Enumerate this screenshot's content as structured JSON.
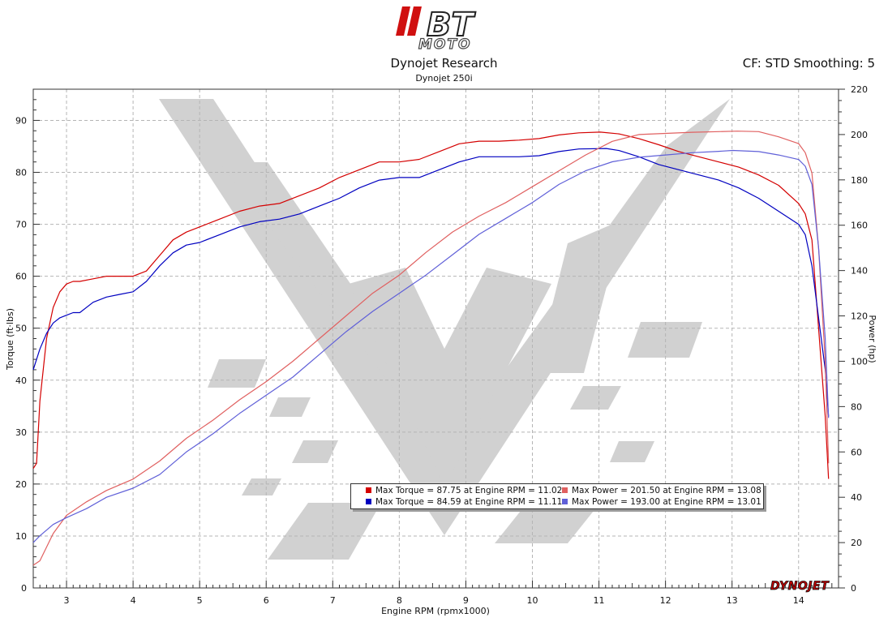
{
  "header": {
    "logo_text": "BT MOTO",
    "title": "Dynojet Research",
    "subtitle": "Dynojet 250i",
    "correction": "CF: STD Smoothing: 5"
  },
  "brand": {
    "red": "#d40000",
    "blue": "#0000c0",
    "light_red": "#e06060",
    "light_blue": "#6060d8",
    "watermark": "#c8c8c8",
    "dynojet_logo_text": "DYNOJET"
  },
  "legend": {
    "items": [
      {
        "color": "#d40000",
        "label": "Max Torque = 87.75 at Engine RPM = 11.02"
      },
      {
        "color": "#e06060",
        "label": "Max Power = 201.50 at Engine RPM = 13.08"
      },
      {
        "color": "#0000c0",
        "label": "Max Torque = 84.59 at Engine RPM = 11.11"
      },
      {
        "color": "#6060d8",
        "label": "Max Power = 193.00 at Engine RPM = 13.01"
      }
    ]
  },
  "chart_data": {
    "type": "line",
    "xlabel": "Engine RPM (rpmx1000)",
    "ylabel": "Torque (ft·lbs)",
    "y2label": "Power (hp)",
    "xlim": [
      2.5,
      14.6
    ],
    "ylim": [
      0,
      96
    ],
    "y2lim": [
      0,
      220
    ],
    "x_ticks": [
      3,
      4,
      5,
      6,
      7,
      8,
      9,
      10,
      11,
      12,
      13,
      14
    ],
    "y_ticks": [
      0,
      10,
      20,
      30,
      40,
      50,
      60,
      70,
      80,
      90
    ],
    "y2_ticks": [
      0,
      20,
      40,
      60,
      80,
      100,
      120,
      140,
      160,
      180,
      200,
      220
    ],
    "grid": true,
    "series": [
      {
        "name": "Max Torque = 87.75 at Engine RPM = 11.02",
        "axis": "left",
        "color": "#d40000",
        "x": [
          2.5,
          2.55,
          2.6,
          2.7,
          2.8,
          2.9,
          3.0,
          3.1,
          3.2,
          3.4,
          3.6,
          3.8,
          4.0,
          4.2,
          4.4,
          4.6,
          4.8,
          5.0,
          5.3,
          5.6,
          5.9,
          6.2,
          6.5,
          6.8,
          7.1,
          7.4,
          7.7,
          8.0,
          8.3,
          8.6,
          8.9,
          9.2,
          9.5,
          9.8,
          10.1,
          10.4,
          10.7,
          11.02,
          11.3,
          11.6,
          11.9,
          12.2,
          12.5,
          12.8,
          13.1,
          13.4,
          13.7,
          14.0,
          14.1,
          14.2,
          14.3,
          14.4,
          14.45
        ],
        "values": [
          23,
          24,
          36,
          48,
          54,
          57,
          58.5,
          59,
          59,
          59.5,
          60,
          60,
          60,
          61,
          64,
          67,
          68.5,
          69.5,
          71,
          72.5,
          73.5,
          74,
          75.5,
          77,
          79,
          80.5,
          82,
          82,
          82.5,
          84,
          85.5,
          86,
          86,
          86.2,
          86.5,
          87.2,
          87.6,
          87.75,
          87.4,
          86.5,
          85.3,
          84,
          83,
          82,
          81,
          79.5,
          77.5,
          74,
          72,
          67,
          50,
          33,
          21
        ]
      },
      {
        "name": "Max Torque = 84.59 at Engine RPM = 11.11",
        "axis": "left",
        "color": "#0000c0",
        "x": [
          2.5,
          2.55,
          2.6,
          2.7,
          2.8,
          2.9,
          3.0,
          3.1,
          3.2,
          3.4,
          3.6,
          3.8,
          4.0,
          4.2,
          4.4,
          4.6,
          4.8,
          5.0,
          5.3,
          5.6,
          5.9,
          6.2,
          6.5,
          6.8,
          7.1,
          7.4,
          7.7,
          8.0,
          8.3,
          8.6,
          8.9,
          9.2,
          9.5,
          9.8,
          10.1,
          10.4,
          10.7,
          11.11,
          11.3,
          11.6,
          11.9,
          12.2,
          12.5,
          12.8,
          13.1,
          13.4,
          13.7,
          14.0,
          14.1,
          14.2,
          14.3,
          14.4,
          14.45
        ],
        "values": [
          42,
          44,
          46,
          49,
          51,
          52,
          52.5,
          53,
          53,
          55,
          56,
          56.5,
          57,
          59,
          62,
          64.5,
          66,
          66.5,
          68,
          69.5,
          70.5,
          71,
          72,
          73.5,
          75,
          77,
          78.5,
          79,
          79,
          80.5,
          82,
          83,
          83,
          83,
          83.2,
          84,
          84.5,
          84.59,
          84.2,
          83,
          81.5,
          80.5,
          79.5,
          78.5,
          77,
          75,
          72.5,
          70,
          68,
          62,
          52,
          42,
          33
        ]
      },
      {
        "name": "Max Power = 201.50 at Engine RPM = 13.08",
        "axis": "right",
        "color": "#e06060",
        "x": [
          2.5,
          2.6,
          2.8,
          3.0,
          3.3,
          3.6,
          4.0,
          4.4,
          4.8,
          5.2,
          5.6,
          6.0,
          6.4,
          6.8,
          7.2,
          7.6,
          8.0,
          8.4,
          8.8,
          9.2,
          9.6,
          10.0,
          10.4,
          10.8,
          11.2,
          11.6,
          12.0,
          12.4,
          12.8,
          13.08,
          13.4,
          13.7,
          14.0,
          14.1,
          14.2,
          14.3,
          14.4,
          14.45
        ],
        "values": [
          10,
          12,
          24,
          32,
          38,
          43,
          48,
          56,
          66,
          74,
          83,
          91,
          100,
          110,
          120,
          130,
          138,
          148,
          157,
          164,
          170,
          177,
          184,
          191,
          197,
          200,
          200.5,
          201,
          201.3,
          201.5,
          201.3,
          199,
          196,
          192,
          183,
          150,
          100,
          55
        ]
      },
      {
        "name": "Max Power = 193.00 at Engine RPM = 13.01",
        "axis": "right",
        "color": "#6060d8",
        "x": [
          2.5,
          2.6,
          2.8,
          3.0,
          3.3,
          3.6,
          4.0,
          4.4,
          4.8,
          5.2,
          5.6,
          6.0,
          6.4,
          6.8,
          7.2,
          7.6,
          8.0,
          8.4,
          8.8,
          9.2,
          9.6,
          10.0,
          10.4,
          10.8,
          11.2,
          11.6,
          12.0,
          12.4,
          12.8,
          13.01,
          13.4,
          13.7,
          14.0,
          14.1,
          14.2,
          14.3,
          14.4,
          14.45
        ],
        "values": [
          20,
          23,
          28,
          31,
          35,
          40,
          44,
          50,
          60,
          68,
          77,
          85,
          93,
          103,
          113,
          122,
          130,
          138,
          147,
          156,
          163,
          170,
          178,
          184,
          188,
          190,
          191,
          192,
          192.6,
          193,
          192.5,
          191,
          189,
          186,
          178,
          150,
          110,
          75
        ]
      }
    ]
  }
}
